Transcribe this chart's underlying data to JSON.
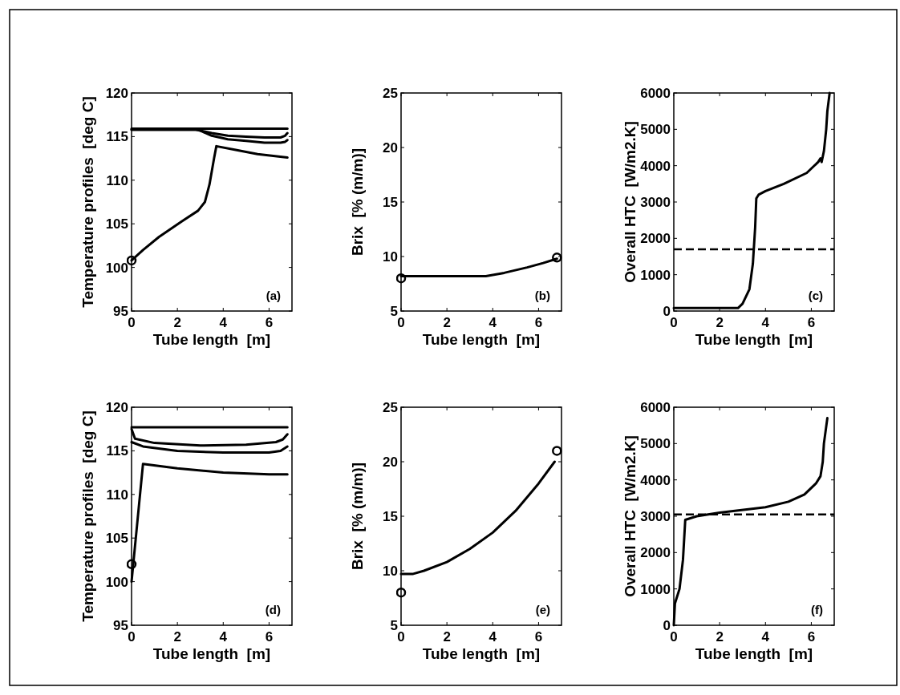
{
  "chart_data": [
    {
      "type": "line",
      "xlabel": "Tube length  [m]",
      "ylabel": "Temperature profiles  [deg C]",
      "xlim": [
        0,
        7
      ],
      "xticks": [
        0,
        2,
        4,
        6
      ],
      "ylim": [
        95,
        120
      ],
      "yticks": [
        95,
        100,
        105,
        110,
        115,
        120
      ],
      "grid": false,
      "annotations": [
        "(a)"
      ],
      "series": [
        {
          "color": "#000000",
          "x": [
            0,
            2,
            4,
            6,
            6.8
          ],
          "values": [
            115.9,
            115.9,
            115.9,
            115.9,
            115.9
          ]
        },
        {
          "color": "#000000",
          "x": [
            0,
            2.8,
            3.5,
            4.2,
            5,
            5.8,
            6.5,
            6.7,
            6.8
          ],
          "values": [
            115.8,
            115.8,
            115.4,
            115.1,
            115,
            114.9,
            114.9,
            115.1,
            115.4
          ]
        },
        {
          "color": "#000000",
          "x": [
            0,
            2.9,
            3.5,
            4.2,
            5,
            5.8,
            6.5,
            6.7,
            6.8
          ],
          "values": [
            115.8,
            115.8,
            115.1,
            114.7,
            114.5,
            114.3,
            114.3,
            114.4,
            114.6
          ]
        },
        {
          "color": "#000000",
          "x": [
            0,
            0.5,
            1.2,
            2.2,
            2.9,
            3.2,
            3.4,
            3.6,
            3.7,
            4.5,
            5.5,
            6.8
          ],
          "values": [
            100.8,
            102,
            103.5,
            105.3,
            106.5,
            107.5,
            109.5,
            112.5,
            113.9,
            113.5,
            113,
            112.6
          ]
        },
        {
          "type": "scatter",
          "marker": "circle",
          "color": "#000000",
          "x": [
            0
          ],
          "values": [
            100.8
          ]
        }
      ]
    },
    {
      "type": "line",
      "xlabel": "Tube length  [m]",
      "ylabel": "Brix  [% (m/m)]",
      "xlim": [
        0,
        7
      ],
      "xticks": [
        0,
        2,
        4,
        6
      ],
      "ylim": [
        5,
        25
      ],
      "yticks": [
        5,
        10,
        15,
        20,
        25
      ],
      "grid": false,
      "annotations": [
        "(b)"
      ],
      "series": [
        {
          "color": "#000000",
          "x": [
            0,
            1,
            2,
            3,
            3.7,
            4.5,
            5.5,
            6.2,
            6.8
          ],
          "values": [
            8.2,
            8.2,
            8.2,
            8.2,
            8.2,
            8.5,
            9,
            9.4,
            9.8
          ]
        },
        {
          "type": "scatter",
          "marker": "circle",
          "color": "#000000",
          "x": [
            0,
            6.8
          ],
          "values": [
            8,
            9.9
          ]
        }
      ]
    },
    {
      "type": "line",
      "xlabel": "Tube length  [m]",
      "ylabel": "Overall HTC  [W/m2.K]",
      "xlim": [
        0,
        7
      ],
      "xticks": [
        0,
        2,
        4,
        6
      ],
      "ylim": [
        0,
        6000
      ],
      "yticks": [
        0,
        1000,
        2000,
        3000,
        4000,
        5000,
        6000
      ],
      "grid": false,
      "annotations": [
        "(c)"
      ],
      "ref_lines": [
        {
          "axis": "y",
          "value": 1700,
          "line_style": "dashed",
          "color": "#000000"
        }
      ],
      "series": [
        {
          "color": "#000000",
          "x": [
            0,
            2.8,
            3,
            3.3,
            3.45,
            3.55,
            3.6,
            3.7,
            4,
            4.8,
            5.8,
            6.3,
            6.4,
            6.45,
            6.55,
            6.65,
            6.7,
            6.8
          ],
          "values": [
            80,
            80,
            200,
            600,
            1300,
            2300,
            3100,
            3200,
            3300,
            3500,
            3800,
            4100,
            4200,
            4100,
            4400,
            5000,
            5500,
            6000
          ]
        }
      ]
    },
    {
      "type": "line",
      "xlabel": "Tube length  [m]",
      "ylabel": "Temperature profiles  [deg C]",
      "xlim": [
        0,
        7
      ],
      "xticks": [
        0,
        2,
        4,
        6
      ],
      "ylim": [
        95,
        120
      ],
      "yticks": [
        95,
        100,
        105,
        110,
        115,
        120
      ],
      "grid": false,
      "annotations": [
        "(d)"
      ],
      "series": [
        {
          "color": "#000000",
          "x": [
            0,
            2,
            4,
            6,
            6.8
          ],
          "values": [
            117.7,
            117.7,
            117.7,
            117.7,
            117.7
          ]
        },
        {
          "color": "#000000",
          "x": [
            0,
            0.15,
            1,
            3,
            5,
            6.3,
            6.6,
            6.8
          ],
          "values": [
            117.5,
            116.4,
            115.9,
            115.6,
            115.7,
            116,
            116.3,
            116.9
          ]
        },
        {
          "color": "#000000",
          "x": [
            0,
            0.5,
            2,
            4,
            6,
            6.5,
            6.8
          ],
          "values": [
            116,
            115.5,
            115,
            114.8,
            114.8,
            115,
            115.5
          ]
        },
        {
          "color": "#000000",
          "x": [
            0,
            0.5,
            2,
            4,
            6,
            6.8
          ],
          "values": [
            100,
            113.5,
            113,
            112.5,
            112.3,
            112.3
          ]
        },
        {
          "type": "scatter",
          "marker": "circle",
          "color": "#000000",
          "x": [
            0
          ],
          "values": [
            102
          ]
        }
      ]
    },
    {
      "type": "line",
      "xlabel": "Tube length  [m]",
      "ylabel": "Brix  [% (m/m)]",
      "xlim": [
        0,
        7
      ],
      "xticks": [
        0,
        2,
        4,
        6
      ],
      "ylim": [
        5,
        25
      ],
      "yticks": [
        5,
        10,
        15,
        20,
        25
      ],
      "grid": false,
      "annotations": [
        "(e)"
      ],
      "series": [
        {
          "color": "#000000",
          "x": [
            0,
            0.5,
            1,
            2,
            3,
            4,
            5,
            6,
            6.7
          ],
          "values": [
            9.7,
            9.7,
            10,
            10.8,
            12,
            13.5,
            15.5,
            18,
            20
          ]
        },
        {
          "type": "scatter",
          "marker": "circle",
          "color": "#000000",
          "x": [
            0,
            6.8
          ],
          "values": [
            8,
            21
          ]
        }
      ]
    },
    {
      "type": "line",
      "xlabel": "Tube length  [m]",
      "ylabel": "Overall HTC  [W/m2.K]",
      "xlim": [
        0,
        7
      ],
      "xticks": [
        0,
        2,
        4,
        6
      ],
      "ylim": [
        0,
        6000
      ],
      "yticks": [
        0,
        1000,
        2000,
        3000,
        4000,
        5000,
        6000
      ],
      "grid": false,
      "annotations": [
        "(f)"
      ],
      "ref_lines": [
        {
          "axis": "y",
          "value": 3050,
          "line_style": "dashed",
          "color": "#000000"
        }
      ],
      "series": [
        {
          "color": "#000000",
          "x": [
            0,
            0.05,
            0.25,
            0.4,
            0.5,
            1,
            2,
            4,
            5,
            5.7,
            6.2,
            6.4,
            6.5,
            6.55,
            6.7
          ],
          "values": [
            0,
            600,
            1000,
            1800,
            2900,
            3000,
            3100,
            3250,
            3400,
            3600,
            3900,
            4100,
            4500,
            5000,
            5700
          ]
        }
      ]
    }
  ]
}
